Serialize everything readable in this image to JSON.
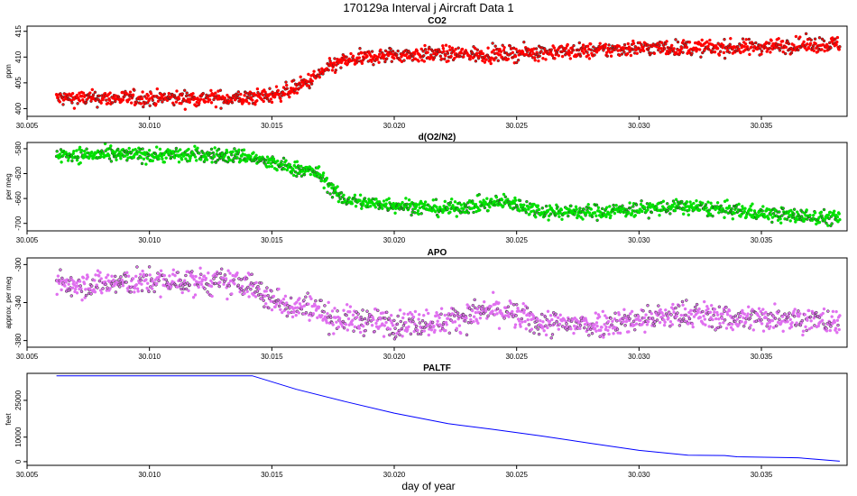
{
  "figure": {
    "title": "170129a   Interval j Aircraft Data 1",
    "xlabel": "day of year"
  },
  "colors": {
    "co2": "#ff0000",
    "o2n2": "#00e000",
    "apo": "#e070f0",
    "paltf": "#0000ff"
  },
  "chart_data": [
    {
      "type": "scatter",
      "title": "CO2",
      "ylabel": "ppm",
      "xlim": [
        30.005,
        30.0385
      ],
      "ylim": [
        398.5,
        416
      ],
      "xticks": [
        "30.005",
        "30.010",
        "30.015",
        "30.020",
        "30.025",
        "30.030",
        "30.035"
      ],
      "yticks": [
        "400",
        "405",
        "410",
        "415"
      ],
      "series": [
        {
          "color": "#ff0000",
          "noise": 0.75,
          "x": [
            30.0062,
            30.008,
            30.01,
            30.012,
            30.014,
            30.015,
            30.0158,
            30.0166,
            30.0172,
            30.0178,
            30.0185,
            30.019,
            30.02,
            30.022,
            30.024,
            30.026,
            30.028,
            30.03,
            30.032,
            30.034,
            30.036,
            30.0382
          ],
          "y": [
            402,
            402,
            402,
            402,
            402,
            402.6,
            403.7,
            405.5,
            407.5,
            409,
            409.6,
            410,
            410.4,
            410.6,
            410.5,
            411,
            411.2,
            411.8,
            411.8,
            411.8,
            412.3,
            412.5
          ]
        }
      ]
    },
    {
      "type": "scatter",
      "title": "d(O2/N2)",
      "ylabel": "per meg",
      "xlim": [
        30.005,
        30.0385
      ],
      "ylim": [
        -712,
        -570
      ],
      "xticks": [
        "30.005",
        "30.010",
        "30.015",
        "30.020",
        "30.025",
        "30.030",
        "30.035"
      ],
      "yticks": [
        "-580",
        "-620",
        "-660",
        "-700"
      ],
      "series": [
        {
          "color": "#00e000",
          "noise": 6,
          "x": [
            30.0062,
            30.008,
            30.01,
            30.012,
            30.014,
            30.0148,
            30.0155,
            30.016,
            30.0168,
            30.0172,
            30.0178,
            30.019,
            30.02,
            30.022,
            30.024,
            30.0245,
            30.026,
            30.028,
            30.03,
            30.032,
            30.034,
            30.036,
            30.0382
          ],
          "y": [
            -590,
            -590,
            -590,
            -590,
            -592,
            -602,
            -608,
            -612,
            -618,
            -632,
            -660,
            -668,
            -670,
            -677,
            -668,
            -665,
            -680,
            -682,
            -677,
            -673,
            -680,
            -687,
            -692
          ]
        }
      ]
    },
    {
      "type": "scatter",
      "title": "APO",
      "ylabel": "approx. per meg",
      "xlim": [
        30.005,
        30.0385
      ],
      "ylim": [
        -387,
        -293
      ],
      "xticks": [
        "30.005",
        "30.010",
        "30.015",
        "30.020",
        "30.025",
        "30.030",
        "30.035"
      ],
      "yticks": [
        "-300",
        "-340",
        "-380"
      ],
      "series": [
        {
          "color": "#e070f0",
          "noise": 7,
          "x": [
            30.0062,
            30.008,
            30.01,
            30.012,
            30.014,
            30.0148,
            30.016,
            30.0168,
            30.0172,
            30.018,
            30.02,
            30.022,
            30.024,
            30.0245,
            30.026,
            30.028,
            30.03,
            30.032,
            30.034,
            30.036,
            30.0382
          ],
          "y": [
            -320,
            -320,
            -318,
            -318,
            -320,
            -335,
            -345,
            -343,
            -355,
            -358,
            -362,
            -360,
            -348,
            -350,
            -362,
            -363,
            -358,
            -352,
            -357,
            -355,
            -362
          ]
        }
      ]
    },
    {
      "type": "line",
      "title": "PALTF",
      "ylabel": "feet",
      "xlim": [
        30.005,
        30.0385
      ],
      "ylim": [
        -1500,
        36000
      ],
      "xticks": [
        "30.005",
        "30.010",
        "30.015",
        "30.020",
        "30.025",
        "30.030",
        "30.035"
      ],
      "yticks": [
        "0",
        "10000",
        "25000"
      ],
      "series": [
        {
          "color": "#0000ff",
          "x": [
            30.0062,
            30.0142,
            30.016,
            30.018,
            30.02,
            30.0222,
            30.024,
            30.026,
            30.028,
            30.03,
            30.032,
            30.0335,
            30.034,
            30.0365,
            30.0382
          ],
          "y": [
            35000,
            35000,
            29500,
            24500,
            19800,
            15500,
            13200,
            10500,
            7500,
            4600,
            2600,
            2500,
            2000,
            1600,
            200
          ]
        }
      ]
    }
  ]
}
